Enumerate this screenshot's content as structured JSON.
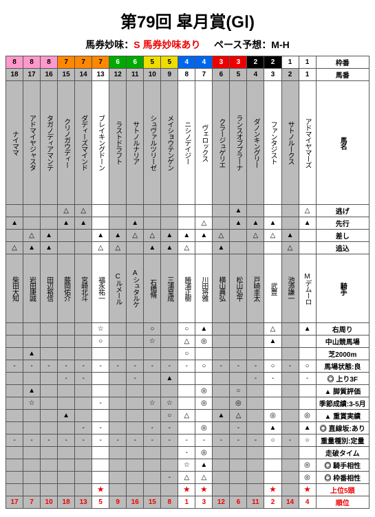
{
  "title": "第79回 皐月賞(GⅠ)",
  "sub_left_label": "馬券妙味：",
  "sub_left_value": "S 馬券妙味あり",
  "sub_right_label": "ペース予想：",
  "sub_right_value": "M-H",
  "waku_colors": {
    "1": "#fff",
    "2": "#000",
    "3": "#e00",
    "4": "#06e",
    "5": "#ed0",
    "6": "#0a0",
    "7": "#f80",
    "8": "#f9c"
  },
  "waku_text_colors": {
    "1": "#000",
    "2": "#fff",
    "3": "#fff",
    "4": "#fff",
    "5": "#000",
    "6": "#fff",
    "7": "#000",
    "8": "#000"
  },
  "row_labels": {
    "waku": "枠番",
    "uma": "馬番",
    "name": "馬名",
    "nige": "逃げ",
    "senko": "先行",
    "sashi": "差し",
    "oikomi": "追込",
    "jockey": "騎手",
    "migi": "右周り",
    "nakayama": "中山競馬場",
    "shiba": "芝2000m",
    "baba": "馬場状態:良",
    "nobori": "上り3F",
    "kyaku": "脚質評価",
    "kisetsu": "季節成績:3-5月",
    "juusho": "重賞実績",
    "chokusen": "直線坂:あり",
    "juuryou": "重量種別:定量",
    "souha": "走破タイム",
    "kishu_ai": "騎手相性",
    "waku_ai": "枠番相性",
    "top5": "上位5頭",
    "rank": "順位"
  },
  "horses": [
    {
      "waku": "8",
      "num": "18",
      "name": "ナイママ",
      "jockey": "柴田大知",
      "gray": 1,
      "nige": "",
      "senko": "▲",
      "sashi": "",
      "oikomi": "△",
      "migi": "",
      "nakayama": "",
      "shiba": "",
      "baba": "-",
      "nobori": "",
      "kyaku": "",
      "kisetsu": "",
      "juusho": "",
      "chokusen": "",
      "juuryou": "-",
      "souha": "",
      "kishu_ai": "",
      "waku_ai": "",
      "top5": "",
      "rank": "17"
    },
    {
      "waku": "8",
      "num": "17",
      "name": "アドマイヤジャスタ",
      "jockey": "岩田康誠",
      "gray": 1,
      "nige": "",
      "senko": "",
      "sashi": "△",
      "oikomi": "▲",
      "migi": "",
      "nakayama": "",
      "shiba": "▲",
      "baba": "-",
      "nobori": "",
      "kyaku": "▲",
      "kisetsu": "☆",
      "juusho": "",
      "chokusen": "",
      "juuryou": "-",
      "souha": "",
      "kishu_ai": "",
      "waku_ai": "",
      "top5": "",
      "rank": "7"
    },
    {
      "waku": "8",
      "num": "16",
      "name": "タガノディアマンテ",
      "jockey": "田辺裕信",
      "gray": 1,
      "nige": "",
      "senko": "",
      "sashi": "▲",
      "oikomi": "▲",
      "migi": "",
      "nakayama": "",
      "shiba": "",
      "baba": "-",
      "nobori": "",
      "kyaku": "",
      "kisetsu": "",
      "juusho": "",
      "chokusen": "",
      "juuryou": "-",
      "souha": "",
      "kishu_ai": "",
      "waku_ai": "",
      "top5": "",
      "rank": "10"
    },
    {
      "waku": "7",
      "num": "15",
      "name": "クリノガウディー",
      "jockey": "藤岡佑介",
      "gray": 1,
      "nige": "△",
      "senko": "▲",
      "sashi": "",
      "oikomi": "",
      "migi": "",
      "nakayama": "",
      "shiba": "",
      "baba": "-",
      "nobori": "-",
      "kyaku": "",
      "kisetsu": "",
      "juusho": "▲",
      "chokusen": "",
      "juuryou": "-",
      "souha": "",
      "kishu_ai": "",
      "waku_ai": "",
      "top5": "",
      "rank": "18"
    },
    {
      "waku": "7",
      "num": "14",
      "name": "ダディーズマインド",
      "jockey": "宮崎北斗",
      "gray": 1,
      "nige": "△",
      "senko": "▲",
      "sashi": "",
      "oikomi": "",
      "migi": "",
      "nakayama": "",
      "shiba": "",
      "baba": "-",
      "nobori": "-",
      "kyaku": "",
      "kisetsu": "",
      "juusho": "",
      "chokusen": "-",
      "juuryou": "-",
      "souha": "",
      "kishu_ai": "",
      "waku_ai": "",
      "top5": "",
      "rank": "13"
    },
    {
      "waku": "7",
      "num": "13",
      "name": "ブレイキングドーン",
      "jockey": "福永祐一",
      "gray": 0,
      "nige": "",
      "senko": "",
      "sashi": "▲",
      "oikomi": "△",
      "migi": "☆",
      "nakayama": "○",
      "shiba": "",
      "baba": "-",
      "nobori": "",
      "kyaku": "",
      "kisetsu": "-",
      "juusho": "",
      "chokusen": "-",
      "juuryou": "-",
      "souha": "",
      "kishu_ai": "",
      "waku_ai": "",
      "top5": "★",
      "rank": "5"
    },
    {
      "waku": "6",
      "num": "12",
      "name": "ラストドラフト",
      "jockey": "Cルメール",
      "gray": 1,
      "nige": "",
      "senko": "",
      "sashi": "▲",
      "oikomi": "△",
      "migi": "",
      "nakayama": "",
      "shiba": "",
      "baba": "-",
      "nobori": "",
      "kyaku": "",
      "kisetsu": "",
      "juusho": "",
      "chokusen": "",
      "juuryou": "-",
      "souha": "",
      "kishu_ai": "",
      "waku_ai": "",
      "top5": "",
      "rank": "9"
    },
    {
      "waku": "6",
      "num": "11",
      "name": "サトノルナリア",
      "jockey": "Aシュタルケ",
      "gray": 1,
      "nige": "",
      "senko": "▲",
      "sashi": "△",
      "oikomi": "",
      "migi": "",
      "nakayama": "",
      "shiba": "",
      "baba": "-",
      "nobori": "-",
      "kyaku": "",
      "kisetsu": "",
      "juusho": "",
      "chokusen": "",
      "juuryou": "-",
      "souha": "",
      "kishu_ai": "",
      "waku_ai": "",
      "top5": "",
      "rank": "16"
    },
    {
      "waku": "5",
      "num": "10",
      "name": "シュヴァルツリーゼ",
      "jockey": "石橋脩",
      "gray": 1,
      "nige": "",
      "senko": "",
      "sashi": "△",
      "oikomi": "▲",
      "migi": "○",
      "nakayama": "☆",
      "shiba": "",
      "baba": "-",
      "nobori": "",
      "kyaku": "",
      "kisetsu": "☆",
      "juusho": "",
      "chokusen": "-",
      "juuryou": "-",
      "souha": "",
      "kishu_ai": "",
      "waku_ai": "",
      "top5": "",
      "rank": "15"
    },
    {
      "waku": "5",
      "num": "9",
      "name": "メイショウテンゲン",
      "jockey": "三浦皇成",
      "gray": 1,
      "nige": "",
      "senko": "",
      "sashi": "▲",
      "oikomi": "▲",
      "migi": "",
      "nakayama": "",
      "shiba": "",
      "baba": "-",
      "nobori": "▲",
      "kyaku": "",
      "kisetsu": "☆",
      "juusho": "○",
      "chokusen": "-",
      "juuryou": "-",
      "souha": "",
      "kishu_ai": "",
      "waku_ai": "-",
      "top5": "",
      "rank": "8"
    },
    {
      "waku": "4",
      "num": "8",
      "name": "ニシノデイジー",
      "jockey": "勝浦正樹",
      "gray": 0,
      "nige": "",
      "senko": "",
      "sashi": "▲",
      "oikomi": "△",
      "migi": "○",
      "nakayama": "△",
      "shiba": "○",
      "baba": "-",
      "nobori": "",
      "kyaku": "",
      "kisetsu": "",
      "juusho": "△",
      "chokusen": "",
      "juuryou": "-",
      "souha": "-",
      "kishu_ai": "☆",
      "waku_ai": "△",
      "top5": "★",
      "rank": "1"
    },
    {
      "waku": "4",
      "num": "7",
      "name": "ヴェロックス",
      "jockey": "川田将雅",
      "gray": 0,
      "nige": "",
      "senko": "△",
      "sashi": "▲",
      "oikomi": "",
      "migi": "▲",
      "nakayama": "◎",
      "shiba": "",
      "baba": "○",
      "nobori": "",
      "kyaku": "◎",
      "kisetsu": "◎",
      "juusho": "",
      "chokusen": "◎",
      "juuryou": "-",
      "souha": "◎",
      "kishu_ai": "▲",
      "waku_ai": "△",
      "top5": "★",
      "rank": "3"
    },
    {
      "waku": "3",
      "num": "6",
      "name": "クラージュゲリエ",
      "jockey": "横山典弘",
      "gray": 1,
      "nige": "",
      "senko": "",
      "sashi": "△",
      "oikomi": "▲",
      "migi": "",
      "nakayama": "",
      "shiba": "",
      "baba": "-",
      "nobori": "",
      "kyaku": "",
      "kisetsu": "",
      "juusho": "▲",
      "chokusen": "",
      "juuryou": "-",
      "souha": "",
      "kishu_ai": "",
      "waku_ai": "",
      "top5": "",
      "rank": "12"
    },
    {
      "waku": "3",
      "num": "5",
      "name": "ランスオブプラーナ",
      "jockey": "松山弘平",
      "gray": 1,
      "nige": "▲",
      "senko": "▲",
      "sashi": "",
      "oikomi": "",
      "migi": "",
      "nakayama": "",
      "shiba": "",
      "baba": "-",
      "nobori": "",
      "kyaku": "○",
      "kisetsu": "◎",
      "juusho": "△",
      "chokusen": "-",
      "juuryou": "-",
      "souha": "",
      "kishu_ai": "",
      "waku_ai": "",
      "top5": "",
      "rank": "6"
    },
    {
      "waku": "2",
      "num": "4",
      "name": "ダノンキングリー",
      "jockey": "戸崎圭太",
      "gray": 1,
      "nige": "",
      "senko": "▲",
      "sashi": "△",
      "oikomi": "",
      "migi": "",
      "nakayama": "",
      "shiba": "",
      "baba": "-",
      "nobori": "-",
      "kyaku": "",
      "kisetsu": "",
      "juusho": "",
      "chokusen": "",
      "juuryou": "-",
      "souha": "",
      "kishu_ai": "",
      "waku_ai": "",
      "top5": "",
      "rank": "11"
    },
    {
      "waku": "2",
      "num": "3",
      "name": "ファンタジスト",
      "jockey": "武豊",
      "gray": 0,
      "nige": "",
      "senko": "▲",
      "sashi": "△",
      "oikomi": "",
      "migi": "△",
      "nakayama": "▲",
      "shiba": "",
      "baba": "○",
      "nobori": "-",
      "kyaku": "",
      "kisetsu": "",
      "juusho": "◎",
      "chokusen": "▲",
      "juuryou": "○",
      "souha": "",
      "kishu_ai": "",
      "waku_ai": "",
      "top5": "★",
      "rank": "2"
    },
    {
      "waku": "1",
      "num": "2",
      "name": "サトノルークス",
      "jockey": "池添謙一",
      "gray": 1,
      "nige": "",
      "senko": "",
      "sashi": "▲",
      "oikomi": "△",
      "migi": "",
      "nakayama": "",
      "shiba": "",
      "baba": "-",
      "nobori": "",
      "kyaku": "",
      "kisetsu": "",
      "juusho": "",
      "chokusen": "",
      "juuryou": "-",
      "souha": "",
      "kishu_ai": "",
      "waku_ai": "",
      "top5": "",
      "rank": "14"
    },
    {
      "waku": "1",
      "num": "1",
      "name": "アドマイヤマーズ",
      "jockey": "Mデムーロ",
      "gray": 0,
      "nige": "△",
      "senko": "▲",
      "sashi": "",
      "oikomi": "",
      "migi": "▲",
      "nakayama": "",
      "shiba": "",
      "baba": "○",
      "nobori": "-",
      "kyaku": "",
      "kisetsu": "",
      "juusho": "◎",
      "chokusen": "▲",
      "juuryou": "○",
      "souha": "",
      "kishu_ai": "◎",
      "waku_ai": "◎",
      "top5": "★",
      "rank": "4"
    }
  ],
  "marker_rows": [
    "migi",
    "nakayama",
    "shiba",
    "baba",
    "nobori",
    "kyaku",
    "kisetsu",
    "juusho",
    "chokusen",
    "juuryou",
    "souha",
    "kishu_ai",
    "waku_ai"
  ],
  "marker_prefix": {
    "migi": "",
    "nakayama": "",
    "shiba": "",
    "baba": "",
    "nobori": "◎",
    "kyaku": "▲",
    "kisetsu": "",
    "juusho": "▲",
    "chokusen": "◎",
    "juuryou": "",
    "souha": "",
    "kishu_ai": "◎",
    "waku_ai": "◎"
  }
}
